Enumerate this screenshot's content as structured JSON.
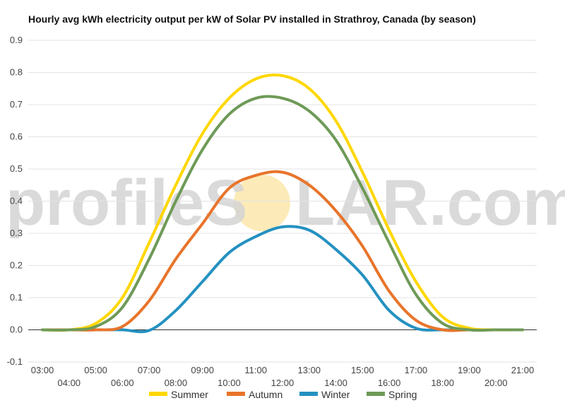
{
  "chart_data": {
    "type": "line",
    "title": "Hourly avg kWh electricity output per kW of Solar PV installed in Strathroy, Canada (by season)",
    "xlabel": "",
    "ylabel": "",
    "x": [
      "03:00",
      "04:00",
      "05:00",
      "06:00",
      "07:00",
      "08:00",
      "09:00",
      "10:00",
      "11:00",
      "12:00",
      "13:00",
      "14:00",
      "15:00",
      "16:00",
      "17:00",
      "18:00",
      "19:00",
      "20:00",
      "21:00"
    ],
    "yticks": [
      "0.9",
      "0.8",
      "0.7",
      "0.6",
      "0.5",
      "0.4",
      "0.3",
      "0.2",
      "0.1",
      "0.0",
      "-0.1"
    ],
    "ylim": [
      -0.1,
      0.9
    ],
    "grid": true,
    "legend_position": "bottom",
    "series": [
      {
        "name": "Summer",
        "color": "#FFD700",
        "values": [
          0,
          0,
          0.02,
          0.1,
          0.27,
          0.45,
          0.61,
          0.72,
          0.78,
          0.79,
          0.75,
          0.65,
          0.49,
          0.31,
          0.15,
          0.04,
          0.005,
          0,
          0
        ]
      },
      {
        "name": "Autumn",
        "color": "#E8742A",
        "values": [
          0,
          0,
          0,
          0.01,
          0.09,
          0.22,
          0.33,
          0.44,
          0.48,
          0.49,
          0.45,
          0.37,
          0.26,
          0.12,
          0.03,
          0,
          0,
          0,
          0
        ]
      },
      {
        "name": "Winter",
        "color": "#2491C0",
        "values": [
          0,
          0,
          0,
          0,
          -0.002,
          0.06,
          0.15,
          0.24,
          0.29,
          0.32,
          0.31,
          0.25,
          0.17,
          0.06,
          0.005,
          0,
          0,
          0,
          0
        ]
      },
      {
        "name": "Spring",
        "color": "#6E9A57",
        "values": [
          0,
          0,
          0.01,
          0.07,
          0.22,
          0.4,
          0.56,
          0.67,
          0.72,
          0.72,
          0.68,
          0.59,
          0.44,
          0.27,
          0.11,
          0.02,
          0,
          0,
          0
        ]
      }
    ]
  },
  "watermark": {
    "text_left": "profileS",
    "text_right": "LAR.com",
    "sun_color": "#FBE39A"
  }
}
